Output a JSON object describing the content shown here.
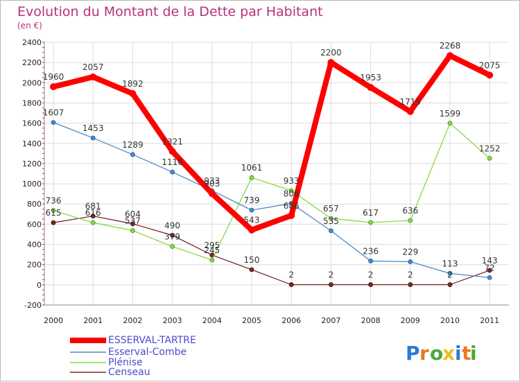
{
  "chart_data": {
    "type": "line",
    "title": "Evolution du Montant de la Dette par Habitant",
    "subtitle": "(en €)",
    "x": [
      "2000",
      "2001",
      "2002",
      "2003",
      "2004",
      "2005",
      "2006",
      "2007",
      "2008",
      "2009",
      "2010",
      "2011"
    ],
    "yticks": [
      -200,
      0,
      200,
      400,
      600,
      800,
      1000,
      1200,
      1400,
      1600,
      1800,
      2000,
      2200,
      2400
    ],
    "ylim": [
      -200,
      2400
    ],
    "grid": true,
    "legend_position": "bottom-left",
    "series": [
      {
        "name": "ESSERVAL-TARTRE",
        "color": "#ff0000",
        "values": [
          1960,
          2057,
          1892,
          1321,
          903,
          543,
          686,
          2200,
          1953,
          1715,
          2268,
          2075
        ]
      },
      {
        "name": "Esserval-Combe",
        "color": "#4a8ac8",
        "values": [
          1607,
          1453,
          1289,
          1116,
          933,
          739,
          806,
          535,
          236,
          229,
          113,
          72
        ]
      },
      {
        "name": "Plénise",
        "color": "#88d848",
        "values": [
          736,
          616,
          537,
          379,
          245,
          1061,
          933,
          657,
          617,
          636,
          1599,
          1252
        ]
      },
      {
        "name": "Censeau",
        "color": "#7a2a2a",
        "values": [
          615,
          681,
          604,
          490,
          295,
          150,
          2,
          2,
          2,
          2,
          2,
          143
        ]
      }
    ]
  },
  "logo": {
    "text": "Proxiti",
    "letters": [
      "P",
      "r",
      "o",
      "x",
      "i",
      "t",
      "i"
    ],
    "colors": [
      "#2a7ad8",
      "#e87a20",
      "#4aa83a",
      "#e8c020",
      "#2a7ad8",
      "#e87a20",
      "#4aa83a"
    ]
  }
}
